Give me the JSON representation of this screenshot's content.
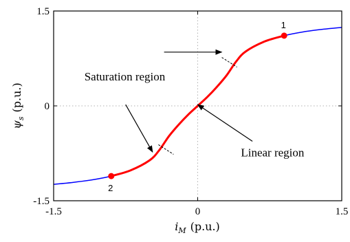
{
  "chart_data": {
    "type": "line",
    "xlabel_symbol": "i",
    "xlabel_sub": "M",
    "xlabel_unit": "(p.u.)",
    "ylabel_symbol": "ψ",
    "ylabel_sub": "s",
    "ylabel_unit": "(p.u.)",
    "xlim": [
      -1.5,
      1.5
    ],
    "ylim": [
      -1.5,
      1.5
    ],
    "xticks": [
      -1.5,
      0,
      1.5
    ],
    "xtick_labels": [
      "-1.5",
      "0",
      "1.5"
    ],
    "yticks": [
      -1.5,
      0,
      1.5
    ],
    "ytick_labels": [
      "-1.5",
      "0",
      "1.5"
    ],
    "zero_gridlines": true,
    "series": [
      {
        "color": "#0000ff",
        "x": [
          -1.5,
          -1.3,
          -1.1,
          -0.9,
          -0.7,
          -0.5,
          -0.4,
          -0.3,
          -0.2,
          -0.1,
          0,
          0.1,
          0.2,
          0.3,
          0.4,
          0.5,
          0.7,
          0.9,
          1.1,
          1.3,
          1.5
        ],
        "y": [
          -1.24,
          -1.21,
          -1.17,
          -1.11,
          -1.02,
          -0.86,
          -0.7,
          -0.48,
          -0.3,
          -0.14,
          0,
          0.14,
          0.3,
          0.48,
          0.7,
          0.86,
          1.02,
          1.11,
          1.17,
          1.21,
          1.24
        ]
      },
      {
        "color": "#ff0000",
        "x": [
          -0.9,
          -0.7,
          -0.5,
          -0.4,
          -0.3,
          -0.2,
          -0.1,
          0,
          0.1,
          0.2,
          0.3,
          0.4,
          0.5,
          0.7,
          0.9
        ],
        "y": [
          -1.11,
          -1.02,
          -0.86,
          -0.7,
          -0.48,
          -0.3,
          -0.14,
          0,
          0.14,
          0.3,
          0.48,
          0.7,
          0.86,
          1.02,
          1.11
        ]
      }
    ],
    "points": [
      {
        "label": "1",
        "x": 0.9,
        "y": 1.11
      },
      {
        "label": "2",
        "x": -0.9,
        "y": -1.11
      }
    ],
    "boundary_marks": [
      {
        "x": 0.33,
        "y": 0.69
      },
      {
        "x": -0.33,
        "y": -0.69
      }
    ],
    "annotations": [
      {
        "text": "Saturation region",
        "x": -1.18,
        "y": 0.4
      },
      {
        "text": "Linear region",
        "x": 0.45,
        "y": -0.8
      }
    ],
    "arrows": [
      {
        "from": [
          -0.35,
          0.85
        ],
        "to": [
          0.25,
          0.85
        ]
      },
      {
        "from": [
          -0.75,
          0.02
        ],
        "to": [
          -0.47,
          -0.73
        ]
      },
      {
        "from": [
          0.57,
          -0.56
        ],
        "to": [
          0.0,
          0.02
        ]
      }
    ]
  }
}
